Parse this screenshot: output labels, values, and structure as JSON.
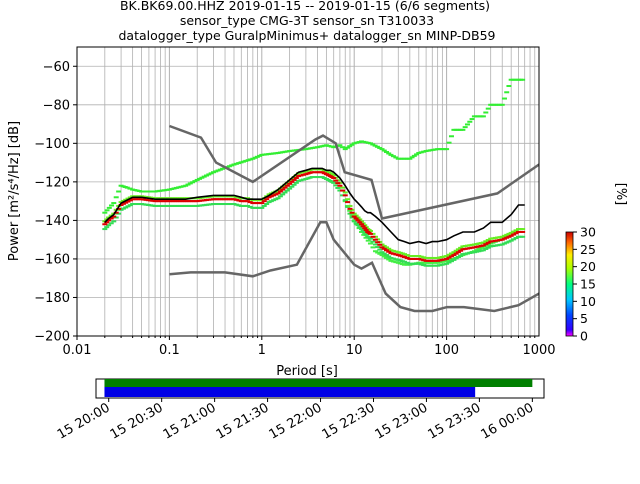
{
  "title_lines": [
    "BK.BK69.00.HHZ   2019-01-15 -- 2019-01-15  (6/6 segments)",
    "sensor_type CMG-3T sensor_sn T310033",
    "datalogger_type GuralpMinimus+ datalogger_sn MINP-DB59"
  ],
  "colorbar": {
    "label": "[%]",
    "ticks": [
      "0",
      "5",
      "10",
      "15",
      "20",
      "25",
      "30"
    ],
    "range": [
      0,
      30
    ]
  },
  "timeline": {
    "ticks": [
      "15 20:00",
      "15 20:30",
      "15 21:00",
      "15 21:30",
      "15 22:00",
      "15 22:30",
      "15 23:00",
      "15 23:30",
      "16 00:00"
    ],
    "range_hours": [
      19.88,
      24.11
    ],
    "data_coverage_hours": [
      19.96,
      24.0
    ],
    "psd_coverage_hours": [
      19.96,
      23.46
    ],
    "data_color": "#007f00",
    "psd_color": "#0000e6"
  },
  "chart_data": {
    "type": "scatter",
    "xlabel": "Period [s]",
    "ylabel": "Power [m²/s⁴/Hz] [dB]",
    "xscale": "log",
    "xlim": [
      0.01,
      1000
    ],
    "ylim": [
      -200,
      -50
    ],
    "xticks": [
      "0.01",
      "0.1",
      "1",
      "10",
      "100",
      "1000"
    ],
    "yticks": [
      "−200",
      "−180",
      "−160",
      "−140",
      "−120",
      "−100",
      "−80",
      "−60"
    ],
    "grid": true,
    "noise_models": [
      {
        "x": [
          0.1,
          0.17,
          0.4,
          0.8,
          1.24,
          2.4,
          4.3,
          5.0,
          6.0,
          10,
          12,
          15.6,
          21.9,
          31.6,
          45,
          70,
          101,
          154,
          328,
          600,
          1000
        ],
        "y": [
          -168,
          -167,
          -167,
          -169,
          -166,
          -163,
          -141,
          -141,
          -150,
          -163,
          -165,
          -162,
          -178,
          -185,
          -187,
          -187,
          -185,
          -185,
          -187,
          -184,
          -178
        ]
      },
      {
        "x": [
          0.1,
          0.22,
          0.32,
          0.8,
          3.8,
          4.6,
          6.3,
          7.9,
          15.4,
          20,
          354.8,
          1000
        ],
        "y": [
          -91,
          -97,
          -110,
          -120,
          -98,
          -96,
          -100,
          -115,
          -119,
          -139,
          -126,
          -111
        ]
      }
    ],
    "mean": {
      "x": [
        0.02,
        0.022,
        0.025,
        0.03,
        0.04,
        0.05,
        0.07,
        0.1,
        0.15,
        0.2,
        0.3,
        0.4,
        0.5,
        0.6,
        0.7,
        0.8,
        1.0,
        1.2,
        1.5,
        2,
        2.5,
        3,
        3.5,
        4,
        4.5,
        5,
        5.5,
        6,
        7,
        8,
        9,
        10,
        11,
        12,
        13,
        14,
        15,
        17,
        20,
        25,
        30,
        35,
        40,
        50,
        60,
        70,
        80,
        100,
        120,
        150,
        200,
        250,
        300,
        400,
        500,
        600,
        700
      ],
      "y": [
        -141,
        -139,
        -137,
        -131,
        -128,
        -128,
        -129,
        -129,
        -129,
        -128,
        -127,
        -127,
        -127,
        -128,
        -129,
        -129,
        -129,
        -127,
        -124,
        -119,
        -115,
        -114,
        -113,
        -113,
        -113,
        -114,
        -114,
        -115,
        -118,
        -122,
        -126,
        -129,
        -131,
        -133,
        -135,
        -136,
        -136,
        -138,
        -141,
        -146,
        -150,
        -151,
        -152,
        -151,
        -152,
        -151,
        -151,
        -150,
        -148,
        -146,
        -146,
        -144,
        -141,
        -141,
        -137,
        -132,
        -132
      ]
    },
    "mode": {
      "x": [
        0.02,
        0.022,
        0.025,
        0.03,
        0.04,
        0.05,
        0.07,
        0.1,
        0.15,
        0.2,
        0.3,
        0.4,
        0.5,
        0.6,
        0.7,
        0.8,
        1.0,
        1.2,
        1.5,
        2,
        2.5,
        3,
        3.5,
        4,
        4.5,
        5,
        5.5,
        6,
        7,
        8,
        9,
        10,
        11,
        12,
        13,
        14,
        15,
        17,
        20,
        25,
        30,
        35,
        40,
        50,
        60,
        70,
        80,
        100,
        120,
        150,
        200,
        250,
        300,
        400,
        500,
        600,
        700
      ],
      "y": [
        -142,
        -140,
        -138,
        -132,
        -129,
        -129,
        -130,
        -130,
        -130,
        -130,
        -129,
        -129,
        -129,
        -130,
        -130,
        -131,
        -131,
        -128,
        -126,
        -121,
        -117,
        -116,
        -115,
        -115,
        -115,
        -116,
        -117,
        -118,
        -122,
        -127,
        -134,
        -138,
        -140,
        -142,
        -144,
        -146,
        -147,
        -150,
        -154,
        -157,
        -158,
        -159,
        -160,
        -160,
        -161,
        -161,
        -161,
        -160,
        -158,
        -155,
        -154,
        -153,
        -151,
        -150,
        -148,
        -146,
        -146
      ]
    },
    "scatter_high": {
      "x": [
        0.02,
        0.025,
        0.03,
        0.035,
        0.04,
        0.05,
        0.07,
        0.1,
        0.15,
        0.2,
        0.3,
        0.5,
        0.8,
        1,
        1.5,
        2,
        3,
        4,
        5,
        6,
        7,
        8,
        10,
        12,
        15,
        20,
        25,
        30,
        40,
        50,
        60,
        80,
        100,
        120,
        150,
        200,
        250,
        300,
        400,
        500,
        600,
        700
      ],
      "y": [
        -136,
        -131,
        -122,
        -123,
        -124,
        -125,
        -125,
        -124,
        -122,
        -119,
        -115,
        -111,
        -108,
        -106,
        -105,
        -104,
        -103,
        -102,
        -101,
        -102,
        -101,
        -103,
        -100,
        -99,
        -100,
        -103,
        -106,
        -108,
        -108,
        -105,
        -104,
        -103,
        -103,
        -93,
        -93,
        -86,
        -86,
        -80,
        -80,
        -67,
        -67,
        -67
      ]
    },
    "scatter_low": {
      "x": [
        8,
        10,
        12,
        15,
        17,
        20,
        25,
        30,
        35,
        40,
        50,
        60,
        70,
        80,
        100,
        120,
        150,
        200,
        300,
        500
      ],
      "y": [
        -130,
        -140,
        -146,
        -152,
        -156,
        -158,
        -161,
        -162,
        -163,
        -163,
        -162,
        -162,
        -162,
        -162,
        -161,
        -160,
        -158,
        -156,
        -152,
        -148
      ]
    }
  }
}
